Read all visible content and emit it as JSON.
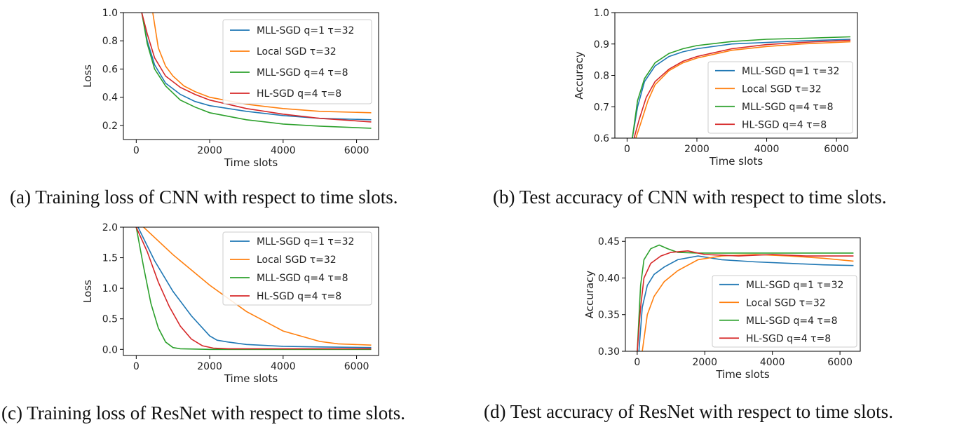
{
  "captions": {
    "a": "(a) Training loss of CNN with respect to time slots.",
    "b": "(b) Test accuracy of CNN with respect to time slots.",
    "c": "(c) Training loss of ResNet with respect to time slots.",
    "d": "(d) Test accuracy of ResNet with respect to time slots."
  },
  "colors": {
    "mll_q1": "#1f77b4",
    "local": "#ff7f0e",
    "mll_q4": "#2ca02c",
    "hl": "#d62728",
    "axis": "#000000"
  },
  "chart_data": [
    {
      "id": "a",
      "type": "line",
      "title": "",
      "xlabel": "Time slots",
      "ylabel": "Loss",
      "xlim": [
        -350,
        6600
      ],
      "ylim": [
        0.1,
        1.0
      ],
      "xticks": [
        0,
        2000,
        4000,
        6000
      ],
      "xtick_labels": [
        "0",
        "2000",
        "4000",
        "6000"
      ],
      "yticks": [
        0.2,
        0.4,
        0.6,
        0.8,
        1.0
      ],
      "ytick_labels": [
        "0.2",
        "0.4",
        "0.6",
        "0.8",
        "1.0"
      ],
      "legend_position": "top-right",
      "series": [
        {
          "name": "MLL-SGD q=1 τ=32",
          "color_key": "mll_q1",
          "x": [
            150,
            300,
            500,
            800,
            1200,
            1600,
            2000,
            3000,
            4000,
            5000,
            6400
          ],
          "y": [
            1.0,
            0.8,
            0.63,
            0.5,
            0.42,
            0.37,
            0.34,
            0.3,
            0.27,
            0.25,
            0.24
          ]
        },
        {
          "name": "Local SGD τ=32",
          "color_key": "local",
          "x": [
            450,
            600,
            800,
            1000,
            1300,
            1600,
            2000,
            3000,
            4000,
            5000,
            6400
          ],
          "y": [
            1.0,
            0.75,
            0.62,
            0.55,
            0.48,
            0.44,
            0.4,
            0.35,
            0.32,
            0.3,
            0.29
          ]
        },
        {
          "name": "MLL-SGD q=4 τ=8",
          "color_key": "mll_q4",
          "x": [
            150,
            300,
            500,
            800,
            1200,
            1600,
            2000,
            3000,
            4000,
            5000,
            6400
          ],
          "y": [
            1.0,
            0.78,
            0.6,
            0.48,
            0.38,
            0.33,
            0.29,
            0.24,
            0.21,
            0.195,
            0.18
          ]
        },
        {
          "name": "HL-SGD q=4 τ=8",
          "color_key": "hl",
          "x": [
            150,
            300,
            500,
            800,
            1200,
            1600,
            2000,
            3000,
            4000,
            5000,
            6400
          ],
          "y": [
            1.0,
            0.85,
            0.68,
            0.55,
            0.47,
            0.42,
            0.38,
            0.32,
            0.28,
            0.25,
            0.225
          ]
        }
      ]
    },
    {
      "id": "b",
      "type": "line",
      "title": "",
      "xlabel": "Time slots",
      "ylabel": "Accuracy",
      "xlim": [
        -350,
        6600
      ],
      "ylim": [
        0.6,
        1.0
      ],
      "xticks": [
        0,
        2000,
        4000,
        6000
      ],
      "xtick_labels": [
        "0",
        "2000",
        "4000",
        "6000"
      ],
      "yticks": [
        0.6,
        0.7,
        0.8,
        0.9,
        1.0
      ],
      "ytick_labels": [
        "0.6",
        "0.7",
        "0.8",
        "0.9",
        "1.0"
      ],
      "legend_position": "lower-right",
      "series": [
        {
          "name": "MLL-SGD q=1 τ=32",
          "color_key": "mll_q1",
          "x": [
            150,
            300,
            500,
            800,
            1200,
            1600,
            2000,
            3000,
            4000,
            5000,
            6400
          ],
          "y": [
            0.6,
            0.7,
            0.78,
            0.83,
            0.86,
            0.875,
            0.885,
            0.9,
            0.905,
            0.91,
            0.915
          ]
        },
        {
          "name": "Local SGD τ=32",
          "color_key": "local",
          "x": [
            250,
            400,
            600,
            800,
            1200,
            1600,
            2000,
            3000,
            4000,
            5000,
            6400
          ],
          "y": [
            0.6,
            0.65,
            0.72,
            0.77,
            0.815,
            0.84,
            0.855,
            0.88,
            0.892,
            0.9,
            0.907
          ]
        },
        {
          "name": "MLL-SGD q=4 τ=8",
          "color_key": "mll_q4",
          "x": [
            150,
            300,
            500,
            800,
            1200,
            1600,
            2000,
            3000,
            4000,
            5000,
            6400
          ],
          "y": [
            0.6,
            0.72,
            0.79,
            0.84,
            0.87,
            0.885,
            0.895,
            0.908,
            0.915,
            0.918,
            0.923
          ]
        },
        {
          "name": "HL-SGD q=4 τ=8",
          "color_key": "hl",
          "x": [
            200,
            350,
            550,
            800,
            1200,
            1600,
            2000,
            3000,
            4000,
            5000,
            6400
          ],
          "y": [
            0.6,
            0.66,
            0.73,
            0.78,
            0.82,
            0.845,
            0.86,
            0.885,
            0.898,
            0.905,
            0.912
          ]
        }
      ]
    },
    {
      "id": "c",
      "type": "line",
      "title": "",
      "xlabel": "Time slots",
      "ylabel": "Loss",
      "xlim": [
        -350,
        6600
      ],
      "ylim": [
        -0.1,
        2.0
      ],
      "xticks": [
        0,
        2000,
        4000,
        6000
      ],
      "xtick_labels": [
        "0",
        "2000",
        "4000",
        "6000"
      ],
      "yticks": [
        0.0,
        0.5,
        1.0,
        1.5,
        2.0
      ],
      "ytick_labels": [
        "0.0",
        "0.5",
        "1.0",
        "1.5",
        "2.0"
      ],
      "legend_position": "top-right",
      "series": [
        {
          "name": "MLL-SGD q=1 τ=32",
          "color_key": "mll_q1",
          "x": [
            50,
            500,
            1000,
            1500,
            2000,
            2200,
            2500,
            3000,
            4000,
            5000,
            6400
          ],
          "y": [
            2.0,
            1.45,
            0.95,
            0.55,
            0.22,
            0.15,
            0.12,
            0.08,
            0.05,
            0.04,
            0.03
          ]
        },
        {
          "name": "Local SGD τ=32",
          "color_key": "local",
          "x": [
            200,
            1000,
            2000,
            3000,
            4000,
            5000,
            5500,
            6400
          ],
          "y": [
            2.0,
            1.55,
            1.05,
            0.62,
            0.3,
            0.13,
            0.09,
            0.07
          ]
        },
        {
          "name": "MLL-SGD q=4 τ=8",
          "color_key": "mll_q4",
          "x": [
            0,
            200,
            400,
            600,
            800,
            1000,
            1200,
            2000,
            6400
          ],
          "y": [
            2.0,
            1.35,
            0.75,
            0.35,
            0.12,
            0.03,
            0.01,
            0.0,
            0.0
          ]
        },
        {
          "name": "HL-SGD q=4 τ=8",
          "color_key": "hl",
          "x": [
            0,
            300,
            600,
            900,
            1200,
            1500,
            1800,
            2100,
            2500,
            6400
          ],
          "y": [
            2.0,
            1.6,
            1.1,
            0.7,
            0.38,
            0.17,
            0.06,
            0.02,
            0.01,
            0.01
          ]
        }
      ]
    },
    {
      "id": "d",
      "type": "line",
      "title": "",
      "xlabel": "Time slots",
      "ylabel": "Accuracy",
      "xlim": [
        -350,
        6600
      ],
      "ylim": [
        0.3,
        0.455
      ],
      "xticks": [
        0,
        2000,
        4000,
        6000
      ],
      "xtick_labels": [
        "0",
        "2000",
        "4000",
        "6000"
      ],
      "yticks": [
        0.3,
        0.35,
        0.4,
        0.45
      ],
      "ytick_labels": [
        "0.30",
        "0.35",
        "0.40",
        "0.45"
      ],
      "legend_position": "lower-right",
      "series": [
        {
          "name": "MLL-SGD q=1 τ=32",
          "color_key": "mll_q1",
          "x": [
            50,
            150,
            300,
            500,
            800,
            1200,
            1800,
            2500,
            3500,
            4500,
            5500,
            6400
          ],
          "y": [
            0.3,
            0.36,
            0.39,
            0.405,
            0.415,
            0.425,
            0.43,
            0.425,
            0.422,
            0.42,
            0.418,
            0.417
          ]
        },
        {
          "name": "Local SGD τ=32",
          "color_key": "local",
          "x": [
            150,
            300,
            500,
            800,
            1200,
            1800,
            2500,
            3500,
            4500,
            5500,
            6400
          ],
          "y": [
            0.3,
            0.35,
            0.375,
            0.395,
            0.41,
            0.425,
            0.43,
            0.432,
            0.43,
            0.427,
            0.423
          ]
        },
        {
          "name": "MLL-SGD q=4 τ=8",
          "color_key": "mll_q4",
          "x": [
            0,
            100,
            200,
            400,
            650,
            900,
            1200,
            1800,
            2500,
            4000,
            6400
          ],
          "y": [
            0.3,
            0.39,
            0.425,
            0.44,
            0.445,
            0.44,
            0.435,
            0.434,
            0.434,
            0.434,
            0.434
          ]
        },
        {
          "name": "HL-SGD q=4 τ=8",
          "color_key": "hl",
          "x": [
            0,
            100,
            200,
            400,
            700,
            1000,
            1500,
            2000,
            3000,
            4000,
            5000,
            6400
          ],
          "y": [
            0.3,
            0.36,
            0.4,
            0.42,
            0.43,
            0.435,
            0.437,
            0.432,
            0.43,
            0.432,
            0.43,
            0.43
          ]
        }
      ]
    }
  ]
}
